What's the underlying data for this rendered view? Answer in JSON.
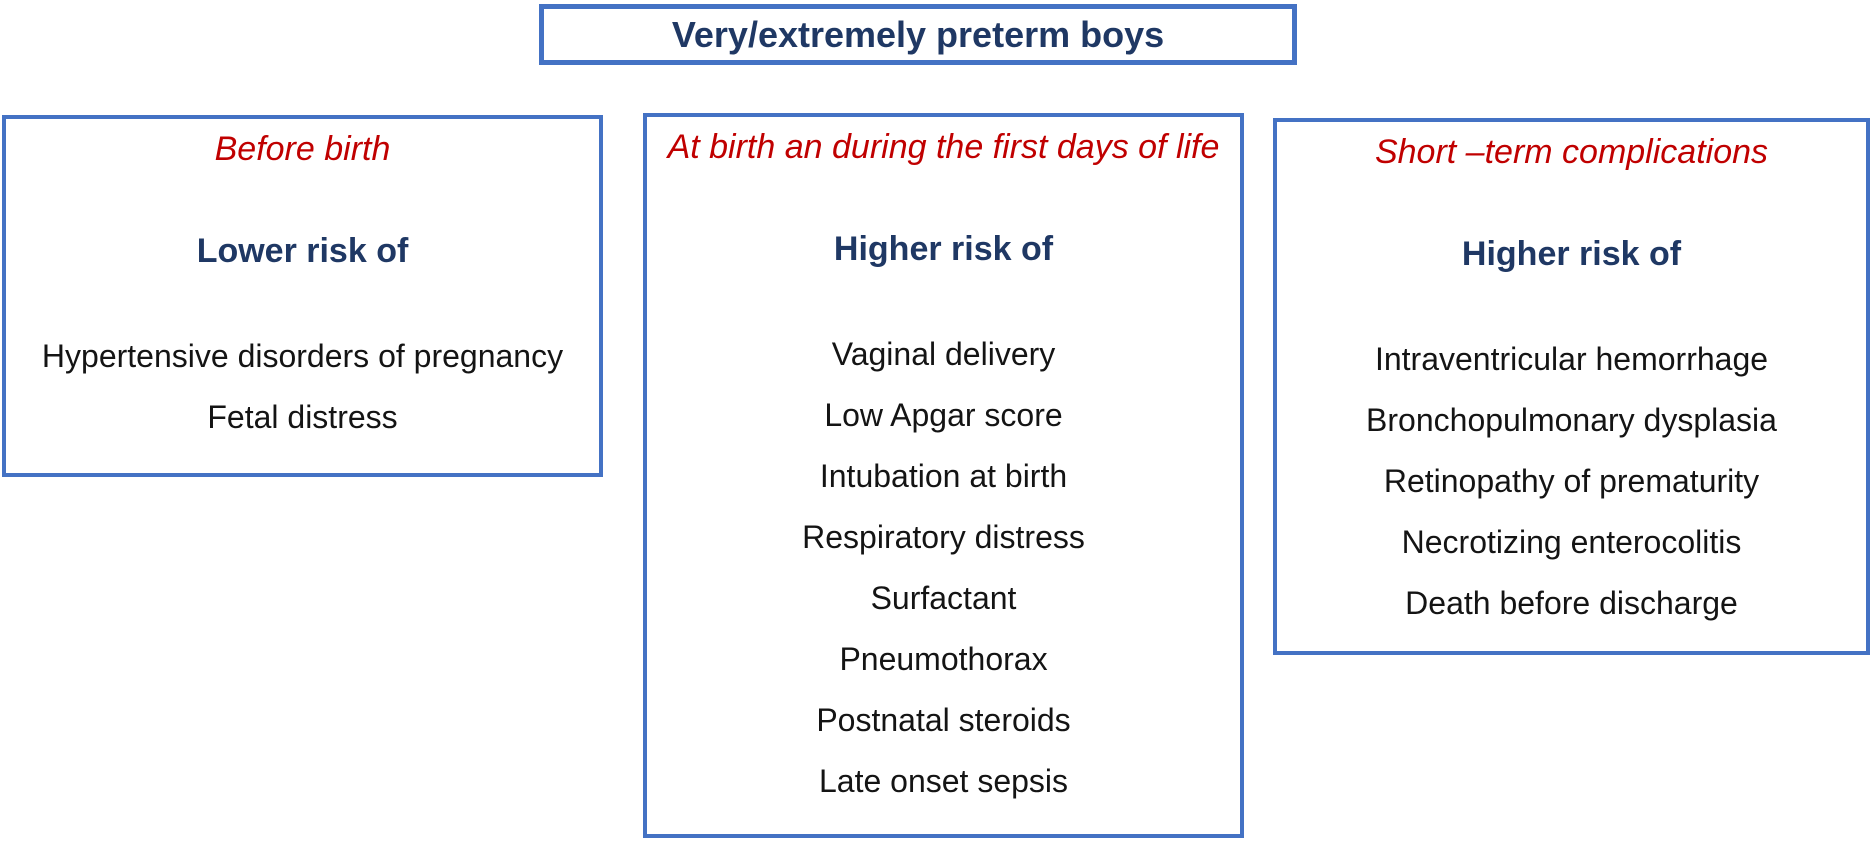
{
  "title": "Very/extremely preterm boys",
  "colors": {
    "box_border": "#4472C4",
    "heading_red": "#C00000",
    "navy_text": "#1F3864",
    "item_text": "#141414",
    "background": "#FFFFFF"
  },
  "boxes": {
    "before_birth": {
      "heading": "Before birth",
      "risk_label": "Lower risk of",
      "items": [
        "Hypertensive disorders of pregnancy",
        "Fetal distress"
      ]
    },
    "at_birth": {
      "heading": "At birth an during the first days of life",
      "risk_label": "Higher risk of",
      "items": [
        "Vaginal delivery",
        "Low Apgar score",
        "Intubation at birth",
        "Respiratory distress",
        "Surfactant",
        "Pneumothorax",
        "Postnatal steroids",
        "Late onset sepsis"
      ]
    },
    "short_term": {
      "heading": "Short –term complications",
      "risk_label": "Higher risk of",
      "items": [
        "Intraventricular hemorrhage",
        "Bronchopulmonary dysplasia",
        "Retinopathy of prematurity",
        "Necrotizing enterocolitis",
        "Death before discharge"
      ]
    }
  }
}
